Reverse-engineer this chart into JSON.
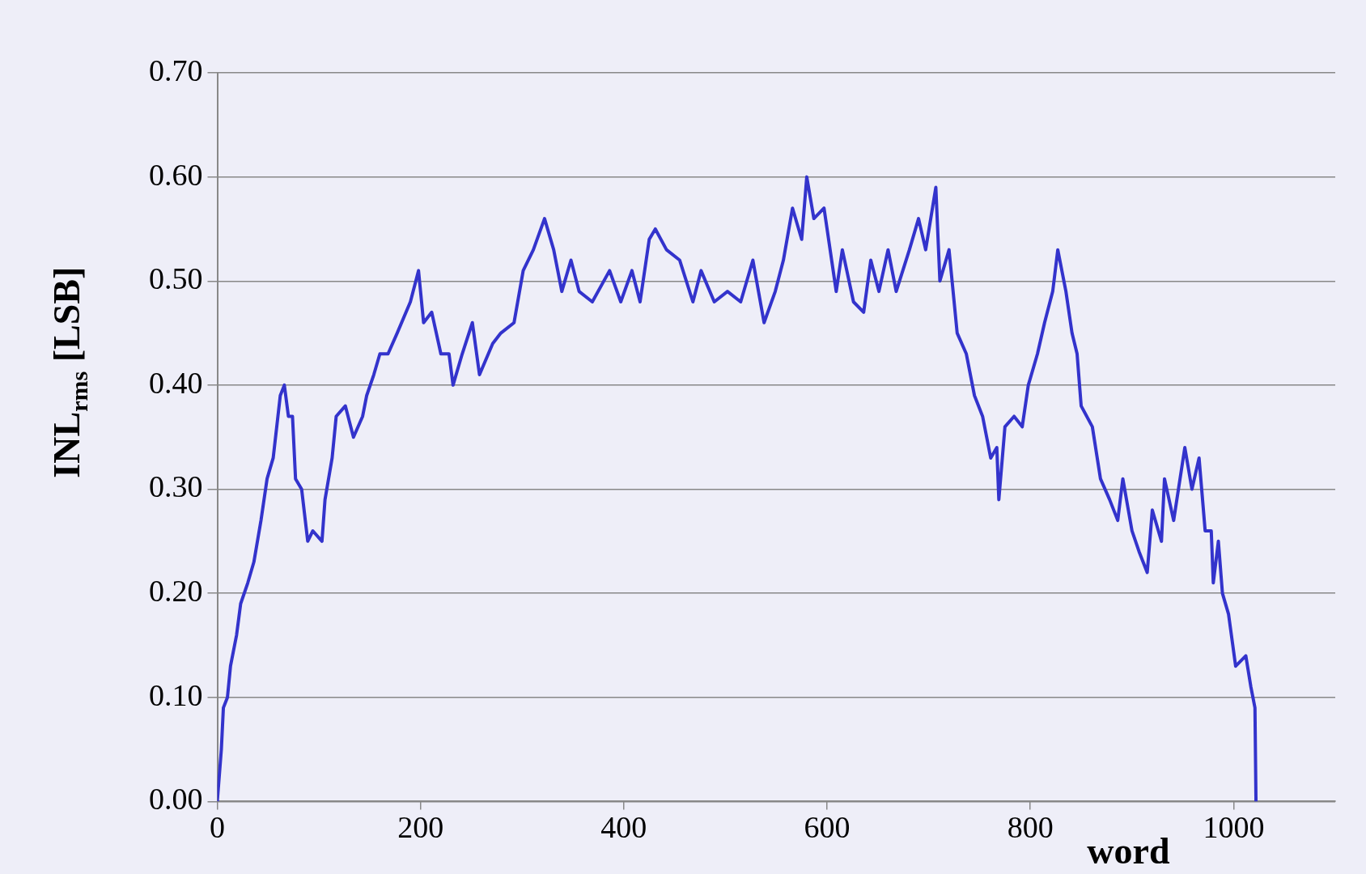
{
  "chart_data": {
    "type": "line",
    "xlabel": "word",
    "ylabel": "INL$_{rms}$ [LSB]",
    "color": "#3333cc",
    "grid": "y",
    "marker": "none",
    "line_style": "solid",
    "xlim": [
      0,
      1100
    ],
    "xticks": [
      0,
      200,
      400,
      600,
      800,
      1000
    ],
    "ylim": [
      0,
      0.7
    ],
    "yticks": [
      {
        "value": 0,
        "label": "0.00"
      },
      {
        "value": 0.1,
        "label": "0.10"
      },
      {
        "value": 0.2,
        "label": "0.20"
      },
      {
        "value": 0.3,
        "label": "0.30"
      },
      {
        "value": 0.4,
        "label": "0.40"
      },
      {
        "value": 0.5,
        "label": "0.50"
      },
      {
        "value": 0.6,
        "label": "0.60"
      },
      {
        "value": 0.7,
        "label": "0.70"
      }
    ],
    "x": [
      0,
      4,
      6,
      10,
      13,
      19,
      23,
      30,
      36,
      43,
      49,
      55,
      62,
      66,
      70,
      74,
      77,
      83,
      89,
      94,
      103,
      106,
      113,
      117,
      126,
      134,
      143,
      147,
      154,
      160,
      168,
      177,
      190,
      198,
      203,
      211,
      220,
      228,
      232,
      241,
      251,
      258,
      271,
      279,
      292,
      301,
      311,
      322,
      331,
      339,
      348,
      356,
      369,
      386,
      397,
      408,
      416,
      425,
      431,
      442,
      455,
      468,
      476,
      489,
      502,
      515,
      527,
      538,
      549,
      557,
      566,
      575,
      580,
      587,
      597,
      609,
      615,
      626,
      636,
      643,
      651,
      660,
      668,
      681,
      690,
      697,
      707,
      711,
      720,
      728,
      737,
      745,
      753,
      761,
      767,
      769,
      775,
      784,
      792,
      798,
      807,
      814,
      822,
      827,
      835,
      841,
      846,
      850,
      861,
      869,
      878,
      886,
      891,
      900,
      907,
      915,
      920,
      929,
      932,
      941,
      952,
      959,
      966,
      972,
      978,
      980,
      985,
      989,
      995,
      1002,
      1012,
      1017,
      1021,
      1022
    ],
    "values": [
      0,
      0.05,
      0.09,
      0.1,
      0.13,
      0.16,
      0.19,
      0.21,
      0.23,
      0.27,
      0.31,
      0.33,
      0.39,
      0.4,
      0.37,
      0.37,
      0.31,
      0.3,
      0.25,
      0.26,
      0.25,
      0.29,
      0.33,
      0.37,
      0.38,
      0.35,
      0.37,
      0.39,
      0.41,
      0.43,
      0.43,
      0.45,
      0.48,
      0.51,
      0.46,
      0.47,
      0.43,
      0.43,
      0.4,
      0.43,
      0.46,
      0.41,
      0.44,
      0.45,
      0.46,
      0.51,
      0.53,
      0.56,
      0.53,
      0.49,
      0.52,
      0.49,
      0.48,
      0.51,
      0.48,
      0.51,
      0.48,
      0.54,
      0.55,
      0.53,
      0.52,
      0.48,
      0.51,
      0.48,
      0.49,
      0.48,
      0.52,
      0.46,
      0.49,
      0.52,
      0.57,
      0.54,
      0.6,
      0.56,
      0.57,
      0.49,
      0.53,
      0.48,
      0.47,
      0.52,
      0.49,
      0.53,
      0.49,
      0.53,
      0.56,
      0.53,
      0.59,
      0.5,
      0.53,
      0.45,
      0.43,
      0.39,
      0.37,
      0.33,
      0.34,
      0.29,
      0.36,
      0.37,
      0.36,
      0.4,
      0.43,
      0.46,
      0.49,
      0.53,
      0.49,
      0.45,
      0.43,
      0.38,
      0.36,
      0.31,
      0.29,
      0.27,
      0.31,
      0.26,
      0.24,
      0.22,
      0.28,
      0.25,
      0.31,
      0.27,
      0.34,
      0.3,
      0.33,
      0.26,
      0.26,
      0.21,
      0.25,
      0.2,
      0.18,
      0.13,
      0.14,
      0.11,
      0.09,
      0
    ]
  }
}
